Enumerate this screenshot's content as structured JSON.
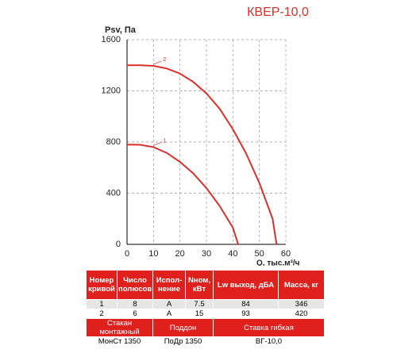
{
  "chart_data": {
    "type": "line",
    "title": "КВЕР-10,0",
    "y_label": "Psv, Па",
    "x_label": "Q, тыс.м³/ч",
    "xlim": [
      0,
      60
    ],
    "ylim": [
      0,
      1600
    ],
    "xticks": [
      0,
      10,
      20,
      30,
      40,
      50,
      60
    ],
    "yticks": [
      0,
      400,
      800,
      1200,
      1600
    ],
    "grid": true,
    "series": [
      {
        "name": "1",
        "color": "#d9302c",
        "x": [
          0,
          5,
          10,
          15,
          20,
          25,
          30,
          35,
          40,
          42
        ],
        "values": [
          780,
          778,
          760,
          715,
          645,
          555,
          440,
          300,
          130,
          0
        ]
      },
      {
        "name": "2",
        "color": "#d9302c",
        "x": [
          0,
          5,
          10,
          15,
          20,
          25,
          30,
          35,
          40,
          45,
          50,
          55,
          56.5
        ],
        "values": [
          1400,
          1400,
          1395,
          1375,
          1335,
          1270,
          1180,
          1060,
          900,
          710,
          480,
          200,
          0
        ]
      }
    ]
  },
  "table": {
    "header": [
      "Номер кривой",
      "Число полюсов",
      "Испол-нение",
      "Nном, кВт",
      "Lw выход, дБА",
      "Масса, кг"
    ],
    "rows": [
      [
        "1",
        "8",
        "А",
        "7.5",
        "84",
        "346"
      ],
      [
        "2",
        "6",
        "А",
        "15",
        "93",
        "420"
      ]
    ],
    "accessories_header": [
      "Стакан монтажный",
      "Поддон",
      "Ставка гибкая"
    ],
    "accessories": [
      "МонСт 1350",
      "ПоДр 1350",
      "ВГ-10,0"
    ]
  }
}
